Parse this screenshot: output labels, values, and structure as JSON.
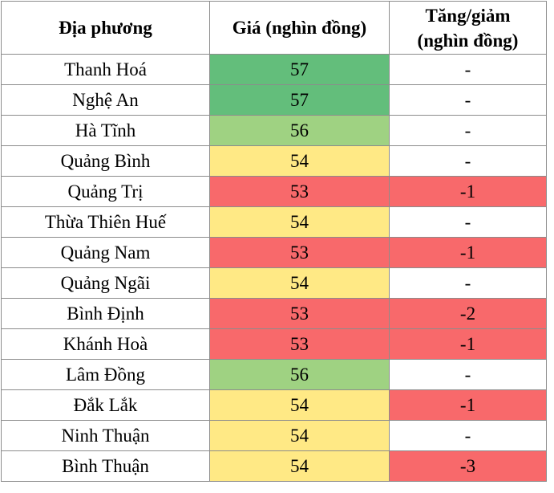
{
  "table": {
    "header": [
      "Địa phương",
      "Giá (nghìn đồng)",
      "Tăng/giảm (nghìn đồng)"
    ],
    "rows": [
      {
        "location": "Thanh Hoá",
        "price": 57,
        "change": "-",
        "price_color": "#63be7b",
        "change_color": "#ffffff"
      },
      {
        "location": "Nghệ An",
        "price": 57,
        "change": "-",
        "price_color": "#63be7b",
        "change_color": "#ffffff"
      },
      {
        "location": "Hà Tĩnh",
        "price": 56,
        "change": "-",
        "price_color": "#9fd282",
        "change_color": "#ffffff"
      },
      {
        "location": "Quảng Bình",
        "price": 54,
        "change": "-",
        "price_color": "#ffe985",
        "change_color": "#ffffff"
      },
      {
        "location": "Quảng Trị",
        "price": 53,
        "change": -1,
        "price_color": "#f8696b",
        "change_color": "#f8696b"
      },
      {
        "location": "Thừa Thiên Huế",
        "price": 54,
        "change": "-",
        "price_color": "#ffe985",
        "change_color": "#ffffff"
      },
      {
        "location": "Quảng Nam",
        "price": 53,
        "change": -1,
        "price_color": "#f8696b",
        "change_color": "#f8696b"
      },
      {
        "location": "Quảng Ngãi",
        "price": 54,
        "change": "-",
        "price_color": "#ffe985",
        "change_color": "#ffffff"
      },
      {
        "location": "Bình Định",
        "price": 53,
        "change": -2,
        "price_color": "#f8696b",
        "change_color": "#f8696b"
      },
      {
        "location": "Khánh Hoà",
        "price": 53,
        "change": -1,
        "price_color": "#f8696b",
        "change_color": "#f8696b"
      },
      {
        "location": "Lâm Đồng",
        "price": 56,
        "change": "-",
        "price_color": "#9fd282",
        "change_color": "#ffffff"
      },
      {
        "location": "Đắk Lắk",
        "price": 54,
        "change": -1,
        "price_color": "#ffe985",
        "change_color": "#f8696b"
      },
      {
        "location": "Ninh Thuận",
        "price": 54,
        "change": "-",
        "price_color": "#ffe985",
        "change_color": "#ffffff"
      },
      {
        "location": "Bình Thuận",
        "price": 54,
        "change": -3,
        "price_color": "#ffe985",
        "change_color": "#f8696b"
      }
    ]
  }
}
